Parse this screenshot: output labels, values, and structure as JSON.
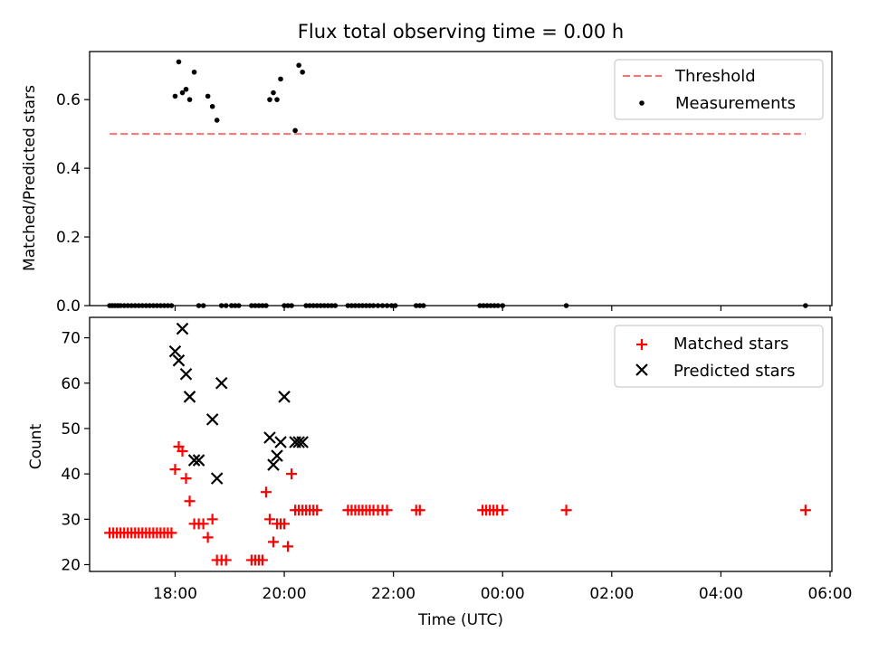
{
  "title": "Flux total observing time = 0.00 h",
  "colors": {
    "threshold": "#ff7070",
    "measurements": "#000000",
    "matched": "#ff0000",
    "predicted": "#000000"
  },
  "chart_data": [
    {
      "type": "scatter",
      "ylabel": "Matched/Predicted stars",
      "ylim": [
        0,
        0.74
      ],
      "yticks": [
        0,
        0.2,
        0.4,
        0.6
      ],
      "ytick_labels": [
        "0.0",
        "0.2",
        "0.4",
        "0.6"
      ],
      "legend": [
        "Threshold",
        "Measurements"
      ],
      "legend_position": "top-right",
      "threshold": {
        "name": "Threshold",
        "x": [
          "16:48",
          "05:33"
        ],
        "value": 0.5
      },
      "measurements": {
        "name": "Measurements",
        "x": [
          "16:48",
          "16:51",
          "16:54",
          "16:57",
          "17:00",
          "17:04",
          "17:08",
          "17:12",
          "17:16",
          "17:20",
          "17:24",
          "17:28",
          "17:32",
          "17:36",
          "17:40",
          "17:44",
          "17:48",
          "17:52",
          "17:56",
          "18:00",
          "18:04",
          "18:08",
          "18:12",
          "18:16",
          "18:21",
          "18:26",
          "18:31",
          "18:36",
          "18:41",
          "18:46",
          "18:51",
          "18:56",
          "19:02",
          "19:06",
          "19:10",
          "19:24",
          "19:28",
          "19:32",
          "19:36",
          "19:40",
          "19:44",
          "19:48",
          "19:52",
          "19:56",
          "20:00",
          "20:04",
          "20:08",
          "20:12",
          "20:16",
          "20:20",
          "20:24",
          "20:28",
          "20:32",
          "20:36",
          "20:40",
          "20:44",
          "20:48",
          "20:52",
          "20:56",
          "21:10",
          "21:14",
          "21:18",
          "21:22",
          "21:26",
          "21:30",
          "21:34",
          "21:38",
          "21:43",
          "21:48",
          "21:53",
          "21:58",
          "22:02",
          "22:25",
          "22:29",
          "22:33",
          "23:35",
          "23:39",
          "23:43",
          "23:47",
          "23:51",
          "23:55",
          "00:00",
          "01:10",
          "05:33"
        ],
        "y": [
          0,
          0,
          0,
          0,
          0,
          0,
          0,
          0,
          0,
          0,
          0,
          0,
          0,
          0,
          0,
          0,
          0,
          0,
          0,
          0.61,
          0.71,
          0.62,
          0.63,
          0.6,
          0.68,
          0,
          0,
          0.61,
          0.58,
          0.54,
          0,
          0,
          0,
          0,
          0,
          0,
          0,
          0,
          0,
          0,
          0.6,
          0.62,
          0.6,
          0.66,
          0,
          0,
          0,
          0.51,
          0.7,
          0.68,
          0,
          0,
          0,
          0,
          0,
          0,
          0,
          0,
          0,
          0,
          0,
          0,
          0,
          0,
          0,
          0,
          0,
          0,
          0,
          0,
          0,
          0,
          0,
          0,
          0,
          0,
          0,
          0,
          0,
          0,
          0,
          0,
          0,
          0
        ]
      }
    },
    {
      "type": "scatter",
      "xlabel": "Time (UTC)",
      "ylabel": "Count",
      "ylim": [
        18.5,
        74.5
      ],
      "yticks": [
        20,
        30,
        40,
        50,
        60,
        70
      ],
      "ytick_labels": [
        "20",
        "30",
        "40",
        "50",
        "60",
        "70"
      ],
      "xtick_labels": [
        "18:00",
        "20:00",
        "22:00",
        "00:00",
        "02:00",
        "04:00",
        "06:00"
      ],
      "legend": [
        "Matched stars",
        "Predicted stars"
      ],
      "legend_position": "top-right",
      "series": [
        {
          "name": "Matched stars",
          "x": [
            "16:48",
            "16:52",
            "16:56",
            "17:00",
            "17:04",
            "17:08",
            "17:12",
            "17:16",
            "17:20",
            "17:24",
            "17:28",
            "17:32",
            "17:36",
            "17:40",
            "17:44",
            "17:48",
            "17:52",
            "17:56",
            "18:00",
            "18:04",
            "18:08",
            "18:12",
            "18:16",
            "18:21",
            "18:26",
            "18:31",
            "18:36",
            "18:41",
            "18:46",
            "18:51",
            "18:56",
            "19:24",
            "19:28",
            "19:32",
            "19:36",
            "19:40",
            "19:44",
            "19:48",
            "19:52",
            "19:56",
            "20:00",
            "20:04",
            "20:08",
            "20:12",
            "20:16",
            "20:20",
            "20:24",
            "20:28",
            "20:32",
            "20:36",
            "21:10",
            "21:14",
            "21:18",
            "21:22",
            "21:26",
            "21:30",
            "21:34",
            "21:38",
            "21:43",
            "21:48",
            "21:53",
            "22:25",
            "22:29",
            "23:38",
            "23:42",
            "23:46",
            "23:50",
            "23:54",
            "00:00",
            "01:10",
            "05:33"
          ],
          "y": [
            27,
            27,
            27,
            27,
            27,
            27,
            27,
            27,
            27,
            27,
            27,
            27,
            27,
            27,
            27,
            27,
            27,
            27,
            41,
            46,
            45,
            39,
            34,
            29,
            29,
            29,
            26,
            30,
            21,
            21,
            21,
            21,
            21,
            21,
            21,
            36,
            30,
            25,
            29,
            29,
            29,
            24,
            40,
            32,
            32,
            32,
            32,
            32,
            32,
            32,
            32,
            32,
            32,
            32,
            32,
            32,
            32,
            32,
            32,
            32,
            32,
            32,
            32,
            32,
            32,
            32,
            32,
            32,
            32,
            32,
            32
          ]
        },
        {
          "name": "Predicted stars",
          "x": [
            "18:00",
            "18:04",
            "18:08",
            "18:12",
            "18:16",
            "18:21",
            "18:26",
            "18:41",
            "18:46",
            "18:51",
            "19:44",
            "19:48",
            "19:52",
            "19:56",
            "20:00",
            "20:12",
            "20:16",
            "20:20"
          ],
          "y": [
            67,
            65,
            72,
            62,
            57,
            43,
            43,
            52,
            39,
            60,
            48,
            42,
            44,
            47,
            57,
            47,
            47,
            47
          ]
        }
      ]
    }
  ]
}
